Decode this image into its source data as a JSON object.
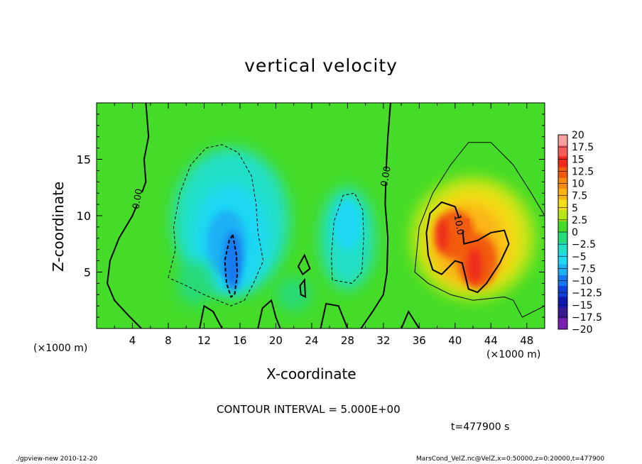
{
  "title": "vertical velocity",
  "xlabel": "X-coordinate",
  "ylabel": "Z-coordinate",
  "x_unit_left": "(×1000 m)",
  "x_unit_right": "(×1000 m)",
  "contour_interval": "CONTOUR INTERVAL = 5.000E+00",
  "time_label": "t=477900 s",
  "footer_left": "./gpview-new  2010-12-20",
  "footer_right": "MarsCond_VelZ.nc@VelZ,x=0:50000,z=0:20000,t=477900",
  "chart_data": {
    "type": "heatmap",
    "title": "vertical velocity",
    "xlabel": "X-coordinate",
    "ylabel": "Z-coordinate",
    "xlim": [
      0,
      50
    ],
    "ylim": [
      0,
      20
    ],
    "x_ticks": [
      4,
      8,
      12,
      16,
      20,
      24,
      28,
      32,
      36,
      40,
      44,
      48
    ],
    "y_ticks": [
      5,
      10,
      15
    ],
    "contour_labels": [
      {
        "text": "0.00",
        "x": 4.5,
        "z": 11.5
      },
      {
        "text": "0.00",
        "x": 32.2,
        "z": 13.5
      },
      {
        "text": "10.0",
        "x": 40.5,
        "z": 9.2
      }
    ],
    "features": [
      {
        "kind": "updraft",
        "x": 40,
        "z": 8,
        "peak": 15
      },
      {
        "kind": "updraft",
        "x": 42,
        "z": 5.5,
        "peak": 15
      },
      {
        "kind": "downdraft",
        "x": 15,
        "z": 6,
        "peak": -12.5
      },
      {
        "kind": "downdraft",
        "x": 28,
        "z": 9,
        "peak": -7.5
      }
    ],
    "colorbar": {
      "levels": [
        "20",
        "17.5",
        "15",
        "12.5",
        "10",
        "7.5",
        "5",
        "2.5",
        "0",
        "−2.5",
        "−5",
        "−7.5",
        "−10",
        "−12.5",
        "−15",
        "−17.5",
        "−20"
      ],
      "colors": [
        "#f7a0a0",
        "#f45c5c",
        "#ee2a1e",
        "#f25c10",
        "#f78a10",
        "#fab414",
        "#f4de16",
        "#b6e618",
        "#44dc28",
        "#28da78",
        "#24e0c8",
        "#1ed8f4",
        "#1eb0f4",
        "#1678f0",
        "#1040d8",
        "#1018b0",
        "#3a1890",
        "#7a20b0"
      ]
    }
  }
}
